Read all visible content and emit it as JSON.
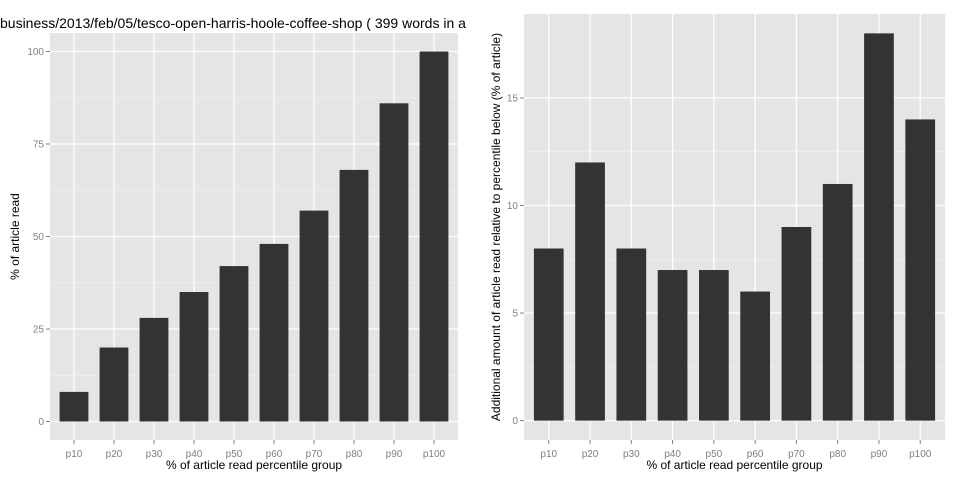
{
  "colors": {
    "panel_background": "#e5e5e5",
    "grid_major": "#ffffff",
    "bar_fill": "#333333",
    "tick_text": "#7f7f7f"
  },
  "chart_data": [
    {
      "type": "bar",
      "title": "business/2013/feb/05/tesco-open-harris-hoole-coffee-shop ( 399 words in a",
      "xlabel": "% of article read percentile group",
      "ylabel": "% of article read",
      "categories": [
        "p10",
        "p20",
        "p30",
        "p40",
        "p50",
        "p60",
        "p70",
        "p80",
        "p90",
        "p100"
      ],
      "values": [
        8,
        20,
        28,
        35,
        42,
        48,
        57,
        68,
        86,
        100
      ],
      "ylim": [
        0,
        100
      ],
      "yticks": [
        0,
        25,
        50,
        75,
        100
      ],
      "grid": true
    },
    {
      "type": "bar",
      "title": "",
      "xlabel": "% of article read percentile group",
      "ylabel": "Additional amount of article read relative to percentile below (% of article)",
      "categories": [
        "p10",
        "p20",
        "p30",
        "p40",
        "p50",
        "p60",
        "p70",
        "p80",
        "p90",
        "p100"
      ],
      "values": [
        8,
        12,
        8,
        7,
        7,
        6,
        9,
        11,
        18,
        14
      ],
      "ylim": [
        0,
        18
      ],
      "yticks": [
        0,
        5,
        10,
        15
      ],
      "grid": true
    }
  ]
}
